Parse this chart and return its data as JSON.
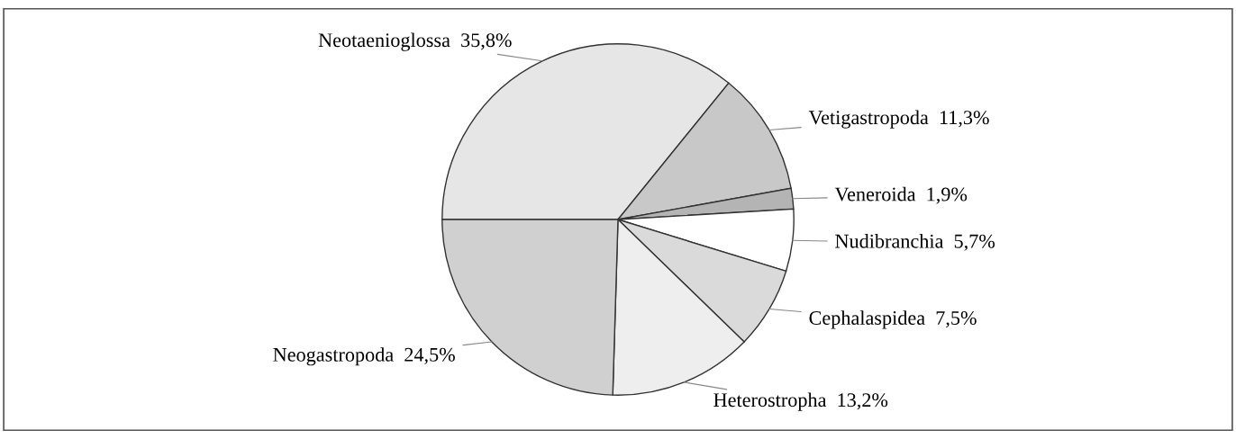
{
  "chart_data": {
    "type": "pie",
    "categories": [
      "Neotaenioglossa",
      "Vetigastropoda",
      "Veneroida",
      "Nudibranchia",
      "Cephalaspidea",
      "Heterostropha",
      "Neogastropoda"
    ],
    "values": [
      35.8,
      11.3,
      1.9,
      5.7,
      7.5,
      13.2,
      24.5
    ],
    "value_labels": [
      "35,8%",
      "11,3%",
      "1,9%",
      "5,7%",
      "7,5%",
      "13,2%",
      "24,5%"
    ],
    "colors": [
      "#e6e6e6",
      "#c8c8c8",
      "#b4b4b4",
      "#ffffff",
      "#dadada",
      "#eeeeee",
      "#d0d0d0"
    ],
    "legend": false
  }
}
